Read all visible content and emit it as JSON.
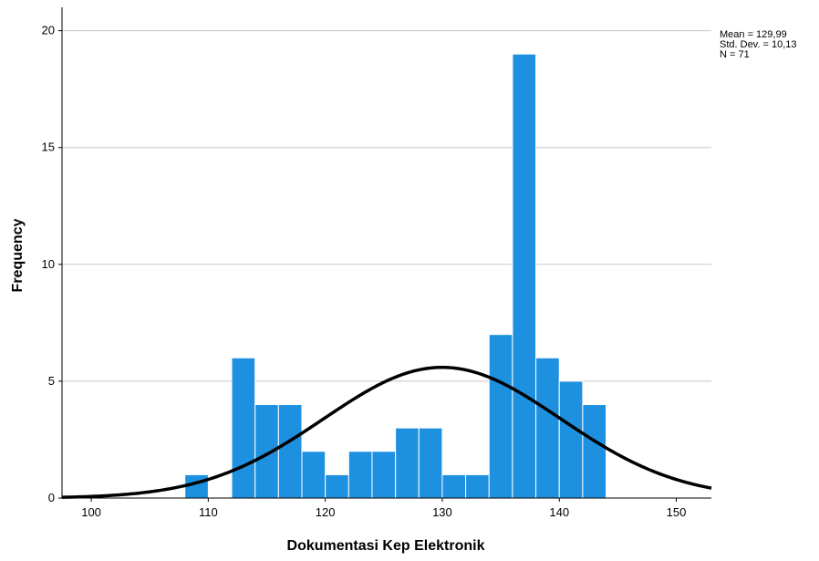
{
  "chart_data": {
    "type": "bar",
    "subtype": "histogram",
    "xlabel": "Dokumentasi Kep Elektronik",
    "ylabel": "Frequency",
    "xlim": [
      97.5,
      153
    ],
    "ylim": [
      0,
      21
    ],
    "x_ticks": [
      100,
      110,
      120,
      130,
      140,
      150
    ],
    "y_ticks": [
      0,
      5,
      10,
      15,
      20
    ],
    "grid": "horizontal",
    "bar_color": "#1e90e0",
    "bin_width": 2,
    "bins": [
      {
        "start": 108,
        "end": 110,
        "value": 1
      },
      {
        "start": 110,
        "end": 112,
        "value": 0
      },
      {
        "start": 112,
        "end": 114,
        "value": 6
      },
      {
        "start": 114,
        "end": 116,
        "value": 4
      },
      {
        "start": 116,
        "end": 118,
        "value": 4
      },
      {
        "start": 118,
        "end": 120,
        "value": 2
      },
      {
        "start": 120,
        "end": 122,
        "value": 1
      },
      {
        "start": 122,
        "end": 124,
        "value": 2
      },
      {
        "start": 124,
        "end": 126,
        "value": 2
      },
      {
        "start": 126,
        "end": 128,
        "value": 3
      },
      {
        "start": 128,
        "end": 130,
        "value": 3
      },
      {
        "start": 130,
        "end": 132,
        "value": 1
      },
      {
        "start": 132,
        "end": 134,
        "value": 1
      },
      {
        "start": 134,
        "end": 136,
        "value": 7
      },
      {
        "start": 136,
        "end": 138,
        "value": 19
      },
      {
        "start": 138,
        "end": 140,
        "value": 6
      },
      {
        "start": 140,
        "end": 142,
        "value": 5
      },
      {
        "start": 142,
        "end": 144,
        "value": 4
      }
    ],
    "normal_curve": {
      "mean": 129.99,
      "std": 10.13,
      "n": 71,
      "color": "#000000"
    },
    "stats_lines": [
      "Mean = 129,99",
      "Std. Dev. = 10,13",
      "N = 71"
    ]
  }
}
